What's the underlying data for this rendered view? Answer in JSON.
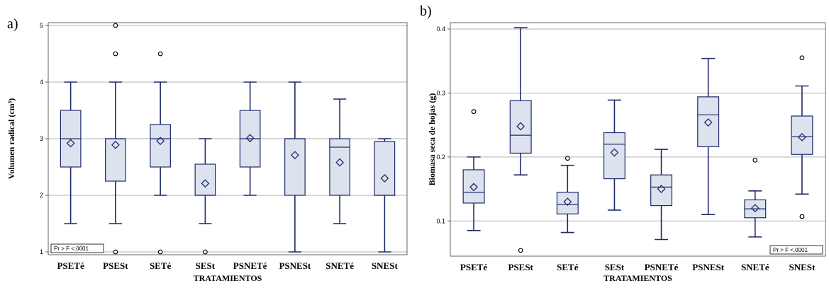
{
  "chart_data": [
    {
      "type": "box",
      "panel_label": "a)",
      "ylabel": "Volumen radical (cm³)",
      "xlabel": "TRATAMIENTOS",
      "ylim": [
        0.95,
        5.05
      ],
      "yticks": [
        1,
        2,
        3,
        4,
        5
      ],
      "grid": "horizontal",
      "pvalue_text": "Pr > F  <.0001",
      "pvalue_position": "bottom-left",
      "categories": [
        "PSETé",
        "PSESt",
        "SETé",
        "SESt",
        "PSNETé",
        "PSNESt",
        "SNETé",
        "SNESt"
      ],
      "boxes": [
        {
          "min": 1.5,
          "q1": 2.5,
          "median": 3.0,
          "q3": 3.5,
          "max": 4.0,
          "mean": 2.92,
          "outliers": []
        },
        {
          "min": 1.5,
          "q1": 2.25,
          "median": 3.0,
          "q3": 3.0,
          "max": 4.0,
          "mean": 2.89,
          "outliers": [
            5.0,
            4.5,
            1.0
          ]
        },
        {
          "min": 2.0,
          "q1": 2.5,
          "median": 3.0,
          "q3": 3.25,
          "max": 4.0,
          "mean": 2.96,
          "outliers": [
            4.5,
            1.0
          ]
        },
        {
          "min": 1.5,
          "q1": 2.0,
          "median": 2.0,
          "q3": 2.55,
          "max": 3.0,
          "mean": 2.21,
          "outliers": [
            1.0
          ]
        },
        {
          "min": 2.0,
          "q1": 2.5,
          "median": 3.0,
          "q3": 3.5,
          "max": 4.0,
          "mean": 3.01,
          "outliers": []
        },
        {
          "min": 1.0,
          "q1": 2.0,
          "median": 3.0,
          "q3": 3.0,
          "max": 4.0,
          "mean": 2.71,
          "outliers": []
        },
        {
          "min": 1.5,
          "q1": 2.0,
          "median": 2.85,
          "q3": 3.0,
          "max": 3.7,
          "mean": 2.58,
          "outliers": []
        },
        {
          "min": 1.0,
          "q1": 2.0,
          "median": 2.0,
          "q3": 2.95,
          "max": 3.0,
          "mean": 2.3,
          "outliers": []
        }
      ]
    },
    {
      "type": "box",
      "panel_label": "b)",
      "ylabel": "Biomasa seca de hojas (g)",
      "xlabel": "TRATAMIENTOS",
      "ylim": [
        0.045,
        0.41
      ],
      "yticks": [
        0.1,
        0.2,
        0.3,
        0.4
      ],
      "grid": "horizontal",
      "pvalue_text": "Pr > F  <.0001",
      "pvalue_position": "bottom-right",
      "categories": [
        "PSETé",
        "PSESt",
        "SETé",
        "SESt",
        "PSNETé",
        "PSNESt",
        "SNETé",
        "SNESt"
      ],
      "boxes": [
        {
          "min": 0.085,
          "q1": 0.128,
          "median": 0.145,
          "q3": 0.18,
          "max": 0.2,
          "mean": 0.153,
          "outliers": [
            0.271
          ]
        },
        {
          "min": 0.172,
          "q1": 0.206,
          "median": 0.234,
          "q3": 0.288,
          "max": 0.402,
          "mean": 0.248,
          "outliers": [
            0.054
          ]
        },
        {
          "min": 0.082,
          "q1": 0.111,
          "median": 0.126,
          "q3": 0.145,
          "max": 0.187,
          "mean": 0.13,
          "outliers": [
            0.198
          ]
        },
        {
          "min": 0.117,
          "q1": 0.166,
          "median": 0.22,
          "q3": 0.238,
          "max": 0.289,
          "mean": 0.207,
          "outliers": []
        },
        {
          "min": 0.071,
          "q1": 0.124,
          "median": 0.153,
          "q3": 0.172,
          "max": 0.212,
          "mean": 0.15,
          "outliers": []
        },
        {
          "min": 0.11,
          "q1": 0.216,
          "median": 0.266,
          "q3": 0.294,
          "max": 0.354,
          "mean": 0.254,
          "outliers": []
        },
        {
          "min": 0.075,
          "q1": 0.105,
          "median": 0.119,
          "q3": 0.133,
          "max": 0.147,
          "mean": 0.12,
          "outliers": [
            0.195
          ]
        },
        {
          "min": 0.142,
          "q1": 0.204,
          "median": 0.232,
          "q3": 0.264,
          "max": 0.311,
          "mean": 0.231,
          "outliers": [
            0.355,
            0.107
          ]
        }
      ]
    }
  ]
}
